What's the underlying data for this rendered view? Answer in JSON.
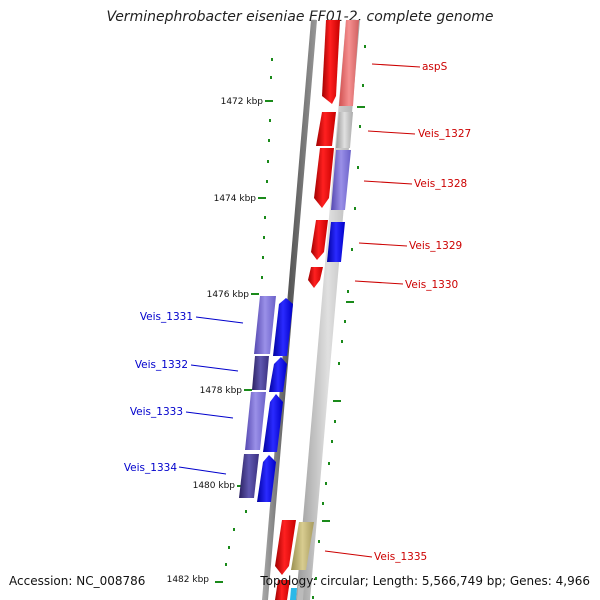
{
  "title": "Verminephrobacter eiseniae EF01-2, complete genome",
  "footer": {
    "accession": "Accession: NC_008786",
    "topology": "Topology: circular; Length: 5,566,749 bp; Genes: 4,966"
  },
  "kbp_labels": [
    "1472 kbp",
    "1474 kbp",
    "1476 kbp",
    "1478 kbp",
    "1480 kbp",
    "1482 kbp"
  ],
  "gene_labels_right": [
    "aspS",
    "Veis_1327",
    "Veis_1328",
    "Veis_1329",
    "Veis_1330",
    "Veis_1335"
  ],
  "gene_labels_left": [
    "Veis_1331",
    "Veis_1332",
    "Veis_1333",
    "Veis_1334"
  ],
  "colors": {
    "backbone": "#777777",
    "forward_gene": "#ff0000",
    "reverse_gene": "#0000ff",
    "tick": "#1a8a1a",
    "right_label": "#cc0000",
    "left_label": "#0000cc"
  }
}
